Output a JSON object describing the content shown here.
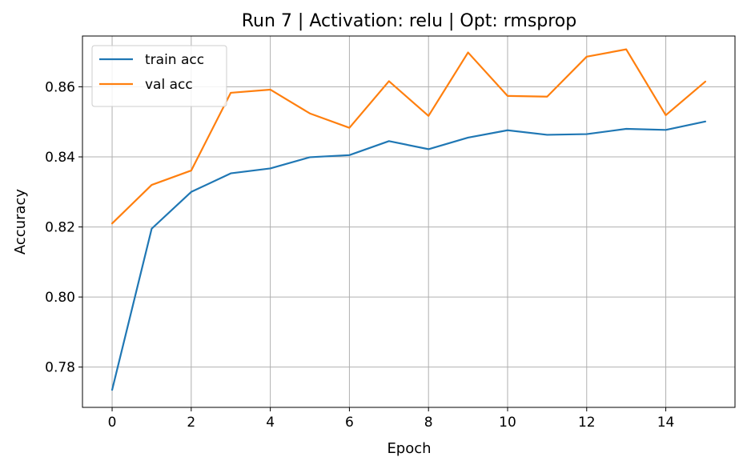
{
  "chart_data": {
    "type": "line",
    "title": "Run 7 | Activation: relu | Opt: rmsprop",
    "xlabel": "Epoch",
    "ylabel": "Accuracy",
    "x": [
      0,
      1,
      2,
      3,
      4,
      5,
      6,
      7,
      8,
      9,
      10,
      11,
      12,
      13,
      14,
      15
    ],
    "xlim": [
      -0.75,
      15.75
    ],
    "ylim": [
      0.7685,
      0.8745
    ],
    "xticks": [
      0,
      2,
      4,
      6,
      8,
      10,
      12,
      14
    ],
    "yticks": [
      0.78,
      0.8,
      0.82,
      0.84,
      0.86
    ],
    "xtick_labels": [
      "0",
      "2",
      "4",
      "6",
      "8",
      "10",
      "12",
      "14"
    ],
    "ytick_labels": [
      "0.78",
      "0.80",
      "0.82",
      "0.84",
      "0.86"
    ],
    "grid": true,
    "legend_position": "top-left",
    "series": [
      {
        "name": "train acc",
        "color": "#1f77b4",
        "values": [
          0.7735,
          0.8195,
          0.83,
          0.8353,
          0.8367,
          0.8399,
          0.8405,
          0.8445,
          0.8422,
          0.8455,
          0.8476,
          0.8463,
          0.8465,
          0.848,
          0.8477,
          0.8501
        ]
      },
      {
        "name": "val acc",
        "color": "#ff7f0e",
        "values": [
          0.821,
          0.832,
          0.8361,
          0.8583,
          0.8592,
          0.8524,
          0.8483,
          0.8616,
          0.8517,
          0.8698,
          0.8574,
          0.8572,
          0.8686,
          0.8707,
          0.8519,
          0.8615
        ]
      }
    ]
  }
}
